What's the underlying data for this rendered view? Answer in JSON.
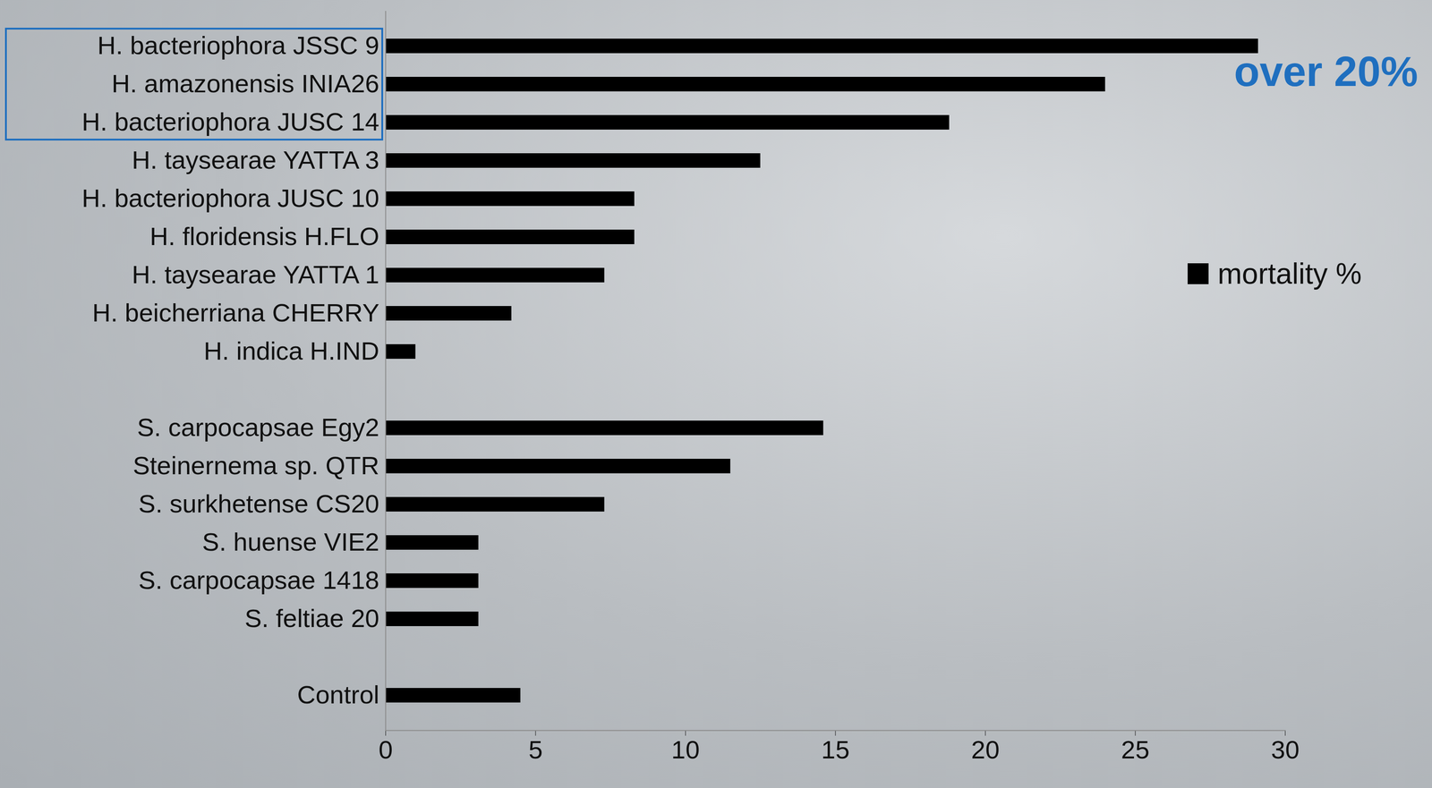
{
  "chart_data": {
    "type": "bar",
    "orientation": "horizontal",
    "categories": [
      "H. bacteriophora JSSC 9",
      "H. amazonensis INIA26",
      "H. bacteriophora JUSC 14",
      "H. taysearae YATTA 3",
      "H. bacteriophora JUSC 10",
      "H. floridensis H.FLO",
      "H. taysearae YATTA 1",
      "H. beicherriana CHERRY",
      "H. indica H.IND",
      null,
      "S. carpocapsae Egy2",
      "Steinernema sp. QTR",
      "S. surkhetense CS20",
      "S. huense VIE2",
      "S. carpocapsae 1418",
      "S. feltiae 20",
      null,
      "Control"
    ],
    "series": [
      {
        "name": "mortality %",
        "color": "#000000",
        "values": [
          29.1,
          24.0,
          18.8,
          12.5,
          8.3,
          8.3,
          7.3,
          4.2,
          1.0,
          null,
          14.6,
          11.5,
          7.3,
          3.1,
          3.1,
          3.1,
          null,
          4.5
        ]
      }
    ],
    "xlim": [
      0,
      30
    ],
    "xticks": [
      0,
      5,
      10,
      15,
      20,
      25,
      30
    ],
    "grid": false,
    "legend": "right",
    "annotations": [
      {
        "text": "over 20%",
        "color": "#1f6fbf"
      }
    ]
  }
}
